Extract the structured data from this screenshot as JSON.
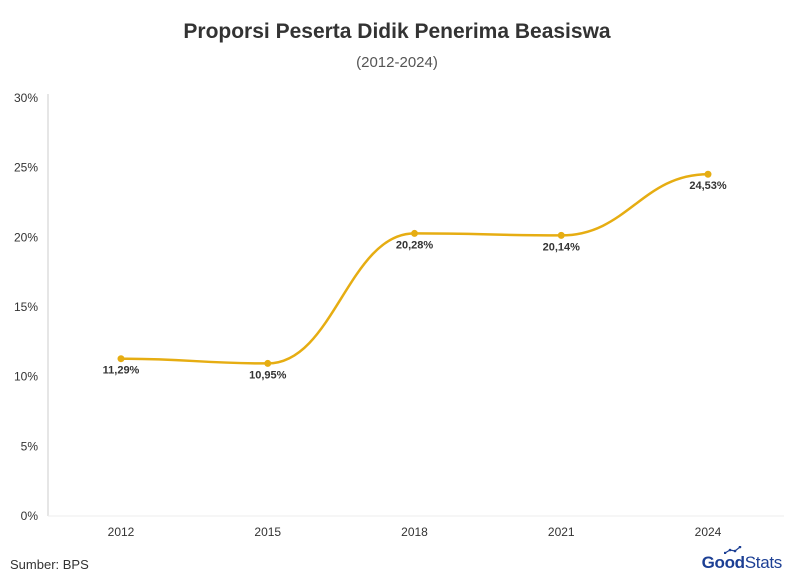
{
  "title": "Proporsi Peserta Didik Penerima Beasiswa",
  "subtitle": "(2012-2024)",
  "source": "Sumber: BPS",
  "logo": {
    "part1": "Good",
    "part2": "Stats"
  },
  "colors": {
    "line": "#e6ad12",
    "axis": "#cccccc",
    "text": "#333333",
    "logo": "#1c3f94"
  },
  "chart_data": {
    "type": "line",
    "title": "Proporsi Peserta Didik Penerima Beasiswa",
    "subtitle": "(2012-2024)",
    "categories": [
      "2012",
      "2015",
      "2018",
      "2021",
      "2024"
    ],
    "values": [
      11.29,
      10.95,
      20.28,
      20.14,
      24.53
    ],
    "data_labels": [
      "11,29%",
      "10,95%",
      "20,28%",
      "20,14%",
      "24,53%"
    ],
    "ylim": [
      0,
      30
    ],
    "yticks": [
      0,
      5,
      10,
      15,
      20,
      25,
      30
    ],
    "ytick_labels": [
      "0%",
      "5%",
      "10%",
      "15%",
      "20%",
      "25%",
      "30%"
    ],
    "grid": false,
    "xlabel": "",
    "ylabel": ""
  }
}
